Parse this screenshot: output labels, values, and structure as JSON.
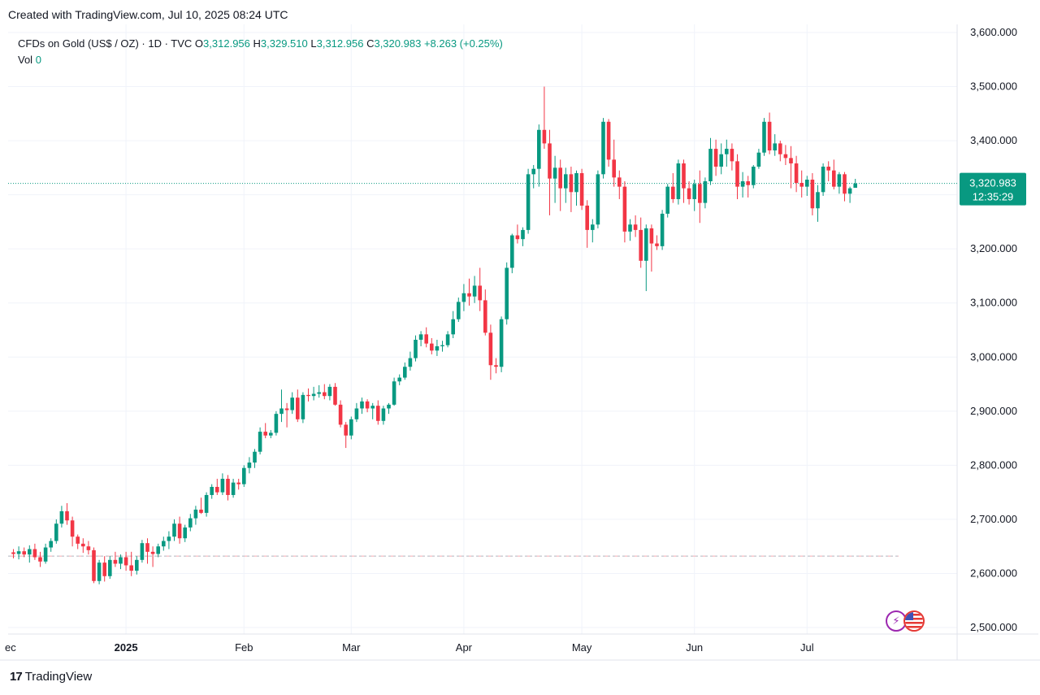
{
  "caption": "Created with TradingView.com, Jul 10, 2025 08:24 UTC",
  "legend": {
    "symbol": "CFDs on Gold (US$ / OZ) · 1D · TVC",
    "o_label": "O",
    "o_value": "3,312.956",
    "h_label": "H",
    "h_value": "3,329.510",
    "l_label": "L",
    "l_value": "3,312.956",
    "c_label": "C",
    "c_value": "3,320.983",
    "change": "+8.263 (+0.25%)",
    "vol_label": "Vol",
    "vol_value": "0"
  },
  "price_badge": {
    "price": "3,320.983",
    "countdown": "12:35:29"
  },
  "footer": {
    "brand": "TradingView",
    "logo_mark": "17"
  },
  "icons": {
    "flash": "lightning-icon",
    "flag": "us-flag-icon"
  },
  "colors": {
    "up": "#089981",
    "down": "#f23645",
    "badge": "#089981",
    "grid": "#f0f3fa",
    "baseline": "#b2b5be"
  },
  "chart_data": {
    "type": "candlestick",
    "title": "CFDs on Gold (US$ / OZ) · 1D · TVC",
    "ylim": [
      2500,
      3600
    ],
    "y_ticks": [
      "3,600.000",
      "3,500.000",
      "3,400.000",
      "3,300.000",
      "3,200.000",
      "3,100.000",
      "3,000.000",
      "2,900.000",
      "2,800.000",
      "2,700.000",
      "2,600.000",
      "2,500.000"
    ],
    "x_labels": [
      {
        "label": "ec",
        "index": 0
      },
      {
        "label": "2025",
        "index": 21
      },
      {
        "label": "Feb",
        "index": 43
      },
      {
        "label": "Mar",
        "index": 63
      },
      {
        "label": "Apr",
        "index": 84
      },
      {
        "label": "May",
        "index": 106
      },
      {
        "label": "Jun",
        "index": 127
      },
      {
        "label": "Jul",
        "index": 148
      }
    ],
    "last_price": 3320.983,
    "reference_price": 2632,
    "candles": [
      [
        2639,
        2645,
        2628,
        2636
      ],
      [
        2636,
        2650,
        2626,
        2641
      ],
      [
        2641,
        2648,
        2630,
        2635
      ],
      [
        2635,
        2652,
        2620,
        2645
      ],
      [
        2645,
        2655,
        2625,
        2630
      ],
      [
        2630,
        2640,
        2612,
        2622
      ],
      [
        2622,
        2655,
        2618,
        2648
      ],
      [
        2648,
        2665,
        2640,
        2660
      ],
      [
        2660,
        2700,
        2655,
        2692
      ],
      [
        2692,
        2725,
        2685,
        2715
      ],
      [
        2715,
        2730,
        2690,
        2698
      ],
      [
        2698,
        2705,
        2650,
        2668
      ],
      [
        2668,
        2672,
        2645,
        2655
      ],
      [
        2655,
        2665,
        2638,
        2650
      ],
      [
        2650,
        2660,
        2635,
        2643
      ],
      [
        2643,
        2648,
        2582,
        2586
      ],
      [
        2586,
        2625,
        2580,
        2620
      ],
      [
        2620,
        2632,
        2585,
        2595
      ],
      [
        2595,
        2632,
        2590,
        2625
      ],
      [
        2625,
        2640,
        2612,
        2618
      ],
      [
        2618,
        2635,
        2608,
        2630
      ],
      [
        2630,
        2640,
        2605,
        2615
      ],
      [
        2615,
        2640,
        2595,
        2605
      ],
      [
        2605,
        2632,
        2598,
        2625
      ],
      [
        2625,
        2662,
        2620,
        2656
      ],
      [
        2656,
        2665,
        2618,
        2640
      ],
      [
        2640,
        2650,
        2612,
        2636
      ],
      [
        2636,
        2655,
        2630,
        2650
      ],
      [
        2650,
        2668,
        2642,
        2660
      ],
      [
        2660,
        2678,
        2645,
        2668
      ],
      [
        2668,
        2700,
        2660,
        2692
      ],
      [
        2692,
        2705,
        2655,
        2665
      ],
      [
        2665,
        2690,
        2658,
        2685
      ],
      [
        2685,
        2710,
        2678,
        2702
      ],
      [
        2702,
        2725,
        2690,
        2718
      ],
      [
        2718,
        2740,
        2710,
        2712
      ],
      [
        2712,
        2750,
        2705,
        2745
      ],
      [
        2745,
        2765,
        2738,
        2760
      ],
      [
        2760,
        2775,
        2745,
        2750
      ],
      [
        2750,
        2785,
        2745,
        2775
      ],
      [
        2775,
        2782,
        2735,
        2745
      ],
      [
        2745,
        2775,
        2740,
        2768
      ],
      [
        2768,
        2775,
        2755,
        2765
      ],
      [
        2765,
        2800,
        2760,
        2795
      ],
      [
        2795,
        2815,
        2785,
        2805
      ],
      [
        2805,
        2830,
        2795,
        2825
      ],
      [
        2825,
        2870,
        2820,
        2862
      ],
      [
        2862,
        2878,
        2850,
        2855
      ],
      [
        2855,
        2865,
        2850,
        2860
      ],
      [
        2860,
        2900,
        2855,
        2895
      ],
      [
        2895,
        2940,
        2880,
        2905
      ],
      [
        2905,
        2915,
        2870,
        2902
      ],
      [
        2902,
        2935,
        2895,
        2925
      ],
      [
        2925,
        2940,
        2880,
        2885
      ],
      [
        2885,
        2935,
        2878,
        2930
      ],
      [
        2930,
        2942,
        2918,
        2928
      ],
      [
        2928,
        2945,
        2920,
        2932
      ],
      [
        2932,
        2948,
        2925,
        2935
      ],
      [
        2935,
        2950,
        2922,
        2928
      ],
      [
        2928,
        2950,
        2920,
        2945
      ],
      [
        2945,
        2952,
        2910,
        2912
      ],
      [
        2912,
        2920,
        2870,
        2875
      ],
      [
        2875,
        2880,
        2832,
        2855
      ],
      [
        2855,
        2890,
        2848,
        2885
      ],
      [
        2885,
        2915,
        2880,
        2905
      ],
      [
        2905,
        2925,
        2895,
        2918
      ],
      [
        2918,
        2922,
        2898,
        2905
      ],
      [
        2905,
        2915,
        2885,
        2910
      ],
      [
        2910,
        2920,
        2875,
        2882
      ],
      [
        2882,
        2910,
        2875,
        2905
      ],
      [
        2905,
        2915,
        2895,
        2912
      ],
      [
        2912,
        2962,
        2910,
        2955
      ],
      [
        2955,
        2968,
        2948,
        2962
      ],
      [
        2962,
        2990,
        2958,
        2982
      ],
      [
        2982,
        3010,
        2975,
        2998
      ],
      [
        2998,
        3040,
        2992,
        3032
      ],
      [
        3032,
        3048,
        3020,
        3042
      ],
      [
        3042,
        3055,
        3018,
        3025
      ],
      [
        3025,
        3035,
        3005,
        3012
      ],
      [
        3012,
        3032,
        3002,
        3020
      ],
      [
        3020,
        3030,
        3010,
        3022
      ],
      [
        3022,
        3048,
        3018,
        3042
      ],
      [
        3042,
        3085,
        3035,
        3070
      ],
      [
        3070,
        3110,
        3065,
        3102
      ],
      [
        3102,
        3135,
        3085,
        3118
      ],
      [
        3118,
        3145,
        3095,
        3112
      ],
      [
        3112,
        3150,
        3100,
        3132
      ],
      [
        3132,
        3165,
        3085,
        3105
      ],
      [
        3105,
        3125,
        3040,
        3045
      ],
      [
        3045,
        3060,
        2958,
        2985
      ],
      [
        2985,
        2998,
        2970,
        2982
      ],
      [
        2982,
        3075,
        2972,
        3070
      ],
      [
        3070,
        3175,
        3060,
        3165
      ],
      [
        3165,
        3228,
        3155,
        3225
      ],
      [
        3225,
        3245,
        3210,
        3218
      ],
      [
        3218,
        3240,
        3205,
        3235
      ],
      [
        3235,
        3348,
        3228,
        3338
      ],
      [
        3338,
        3355,
        3312,
        3348
      ],
      [
        3348,
        3430,
        3315,
        3420
      ],
      [
        3420,
        3500,
        3385,
        3395
      ],
      [
        3395,
        3420,
        3262,
        3330
      ],
      [
        3330,
        3372,
        3285,
        3350
      ],
      [
        3350,
        3365,
        3270,
        3312
      ],
      [
        3312,
        3350,
        3285,
        3338
      ],
      [
        3338,
        3352,
        3268,
        3305
      ],
      [
        3305,
        3345,
        3280,
        3340
      ],
      [
        3340,
        3348,
        3272,
        3280
      ],
      [
        3280,
        3290,
        3202,
        3235
      ],
      [
        3235,
        3255,
        3212,
        3245
      ],
      [
        3245,
        3345,
        3238,
        3338
      ],
      [
        3338,
        3442,
        3330,
        3435
      ],
      [
        3435,
        3440,
        3352,
        3365
      ],
      [
        3365,
        3402,
        3315,
        3332
      ],
      [
        3332,
        3345,
        3292,
        3315
      ],
      [
        3315,
        3325,
        3212,
        3232
      ],
      [
        3232,
        3255,
        3215,
        3245
      ],
      [
        3245,
        3262,
        3222,
        3235
      ],
      [
        3235,
        3258,
        3165,
        3178
      ],
      [
        3178,
        3245,
        3122,
        3238
      ],
      [
        3238,
        3245,
        3158,
        3210
      ],
      [
        3210,
        3225,
        3198,
        3205
      ],
      [
        3205,
        3272,
        3198,
        3265
      ],
      [
        3265,
        3320,
        3258,
        3315
      ],
      [
        3315,
        3340,
        3285,
        3292
      ],
      [
        3292,
        3365,
        3282,
        3358
      ],
      [
        3358,
        3365,
        3285,
        3312
      ],
      [
        3312,
        3325,
        3282,
        3292
      ],
      [
        3292,
        3328,
        3270,
        3320
      ],
      [
        3320,
        3345,
        3248,
        3285
      ],
      [
        3285,
        3332,
        3275,
        3325
      ],
      [
        3325,
        3405,
        3318,
        3385
      ],
      [
        3385,
        3402,
        3335,
        3352
      ],
      [
        3352,
        3395,
        3338,
        3375
      ],
      [
        3375,
        3402,
        3352,
        3385
      ],
      [
        3385,
        3395,
        3345,
        3362
      ],
      [
        3362,
        3375,
        3292,
        3315
      ],
      [
        3315,
        3342,
        3295,
        3325
      ],
      [
        3325,
        3335,
        3295,
        3318
      ],
      [
        3318,
        3355,
        3312,
        3352
      ],
      [
        3352,
        3385,
        3348,
        3378
      ],
      [
        3378,
        3442,
        3372,
        3435
      ],
      [
        3435,
        3452,
        3375,
        3382
      ],
      [
        3382,
        3412,
        3372,
        3395
      ],
      [
        3395,
        3400,
        3362,
        3375
      ],
      [
        3375,
        3392,
        3355,
        3368
      ],
      [
        3368,
        3390,
        3312,
        3358
      ],
      [
        3358,
        3372,
        3305,
        3322
      ],
      [
        3322,
        3345,
        3295,
        3315
      ],
      [
        3315,
        3335,
        3298,
        3328
      ],
      [
        3328,
        3340,
        3262,
        3275
      ],
      [
        3275,
        3318,
        3250,
        3305
      ],
      [
        3305,
        3358,
        3298,
        3352
      ],
      [
        3352,
        3362,
        3325,
        3345
      ],
      [
        3345,
        3365,
        3310,
        3315
      ],
      [
        3315,
        3342,
        3302,
        3338
      ],
      [
        3338,
        3342,
        3288,
        3302
      ],
      [
        3302,
        3315,
        3285,
        3312
      ],
      [
        3312.956,
        3329.51,
        3312.956,
        3320.983
      ]
    ]
  }
}
